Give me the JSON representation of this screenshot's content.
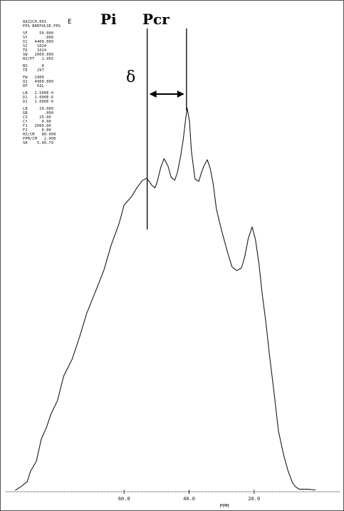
{
  "corner_mark": "E",
  "parameters": [
    [
      "8AZ2CH.001",
      "PPG BREPULSE.PPG"
    ],
    [
      "SF     50.000",
      "SY       .000",
      "O1   4400.000",
      "SI    1024",
      "TD    1024",
      "SW   2000.000",
      "HZ/PT   1.955"
    ],
    [
      "NS      8",
      "TE    297"
    ],
    [
      "FW   2400",
      "O2   4900.000",
      "DP    63L"
    ],
    [
      "LB   2.500E-0",
      "D1   1.000E-6",
      "D2   1.000E-6"
    ],
    [
      "LB     20.000",
      "GB       .000",
      "CX     25.00",
      "CY      0.00",
      "F1   2000.00",
      "F2      0.00",
      "HZ/CM   80.000",
      "PPM/CM   2.000",
      "SR    5.00.79"
    ]
  ],
  "chart_data": {
    "type": "line",
    "title": "",
    "xlabel": "PPM",
    "ylabel": "",
    "x_reversed": true,
    "xlim": [
      0.0,
      96.0
    ],
    "ylim": [
      0,
      100
    ],
    "x_ticks": [
      {
        "value": 60.0,
        "label": "60.0"
      },
      {
        "value": 40.0,
        "label": "40.0"
      },
      {
        "value": 20.0,
        "label": "20.0"
      }
    ],
    "grid": false,
    "legend": "none",
    "annotations": {
      "pi_label": "Pi",
      "pcr_label": "Pcr",
      "delta_label": "δ",
      "pi_x": 52.9,
      "pcr_x": 40.8
    },
    "series": [
      {
        "x": [
          93.5,
          91.5,
          89.8,
          88.8,
          87.0,
          85.5,
          83.9,
          82.5,
          80.5,
          78.6,
          76.0,
          73.7,
          71.5,
          68.5,
          66.2,
          64.0,
          61.6,
          60.0,
          57.8,
          55.9,
          54.4,
          53.1,
          52.3,
          51.3,
          50.5,
          49.8,
          48.7,
          47.7,
          46.5,
          45.5,
          44.4,
          43.6,
          42.6,
          41.8,
          41.1,
          40.6,
          39.9,
          39.3,
          38.2,
          37.0,
          36.3,
          35.5,
          34.4,
          33.5,
          32.6,
          31.6,
          30.6,
          29.8,
          28.2,
          26.8,
          25.3,
          23.9,
          22.9,
          21.8,
          20.6,
          19.6,
          18.5,
          17.5,
          16.4,
          15.2,
          14.0,
          12.5,
          10.9,
          9.5,
          8.2,
          7.2,
          6.1,
          4.7,
          3.4,
          1.1
        ],
        "y": [
          0.0,
          1.1,
          2.3,
          5.0,
          7.6,
          13.3,
          16.4,
          19.9,
          23.4,
          29.8,
          34.2,
          40.0,
          46.2,
          52.5,
          57.5,
          63.9,
          69.4,
          74.4,
          76.5,
          79.1,
          80.8,
          81.4,
          80.6,
          79.4,
          78.9,
          80.5,
          84.3,
          86.5,
          84.6,
          81.6,
          80.9,
          82.9,
          87.1,
          91.5,
          96.6,
          99.7,
          96.3,
          88.6,
          81.2,
          80.6,
          82.6,
          84.5,
          86.2,
          83.9,
          80.0,
          73.4,
          69.8,
          67.2,
          62.2,
          58.3,
          57.3,
          58.0,
          60.8,
          65.6,
          68.7,
          65.5,
          59.1,
          51.2,
          44.0,
          34.9,
          26.6,
          15.4,
          9.2,
          4.9,
          2.0,
          0.9,
          0.3,
          0.3,
          0.3,
          0.1
        ]
      }
    ]
  }
}
